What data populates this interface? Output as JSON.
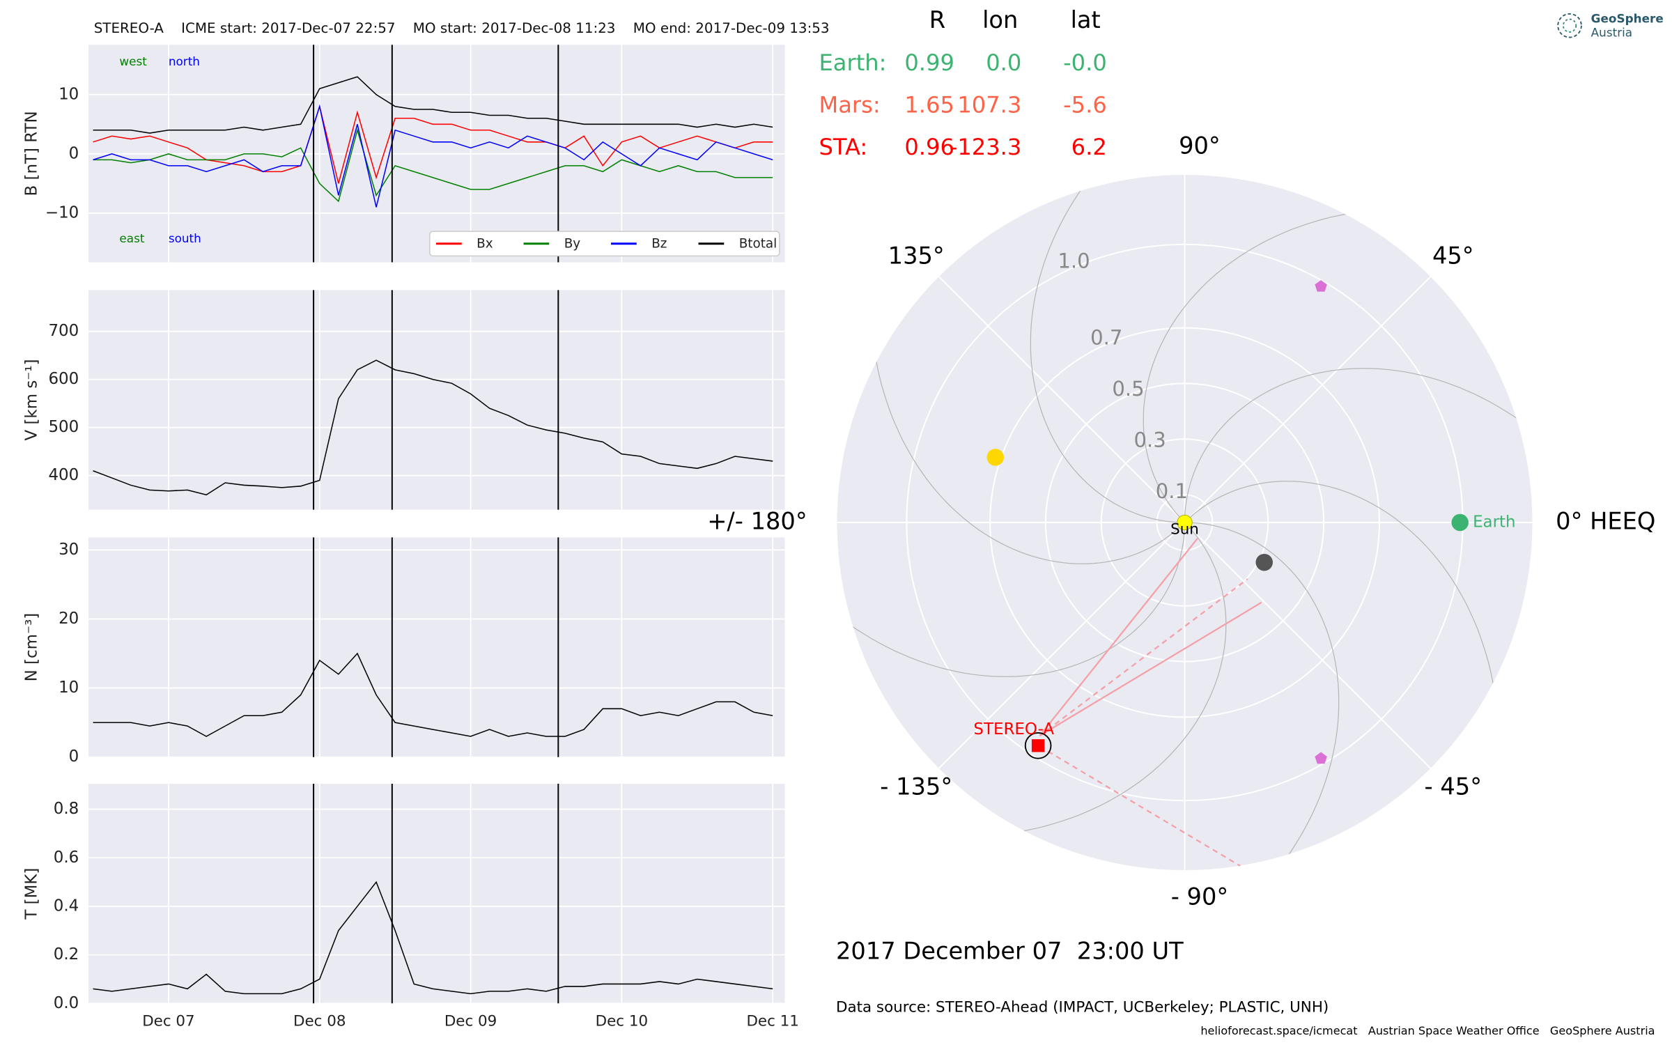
{
  "chart_data": [
    {
      "type": "line",
      "title": "STEREO-A    ICME start: 2017-Dec-07 22:57    MO start: 2017-Dec-08 11:23    MO end: 2017-Dec-09 13:53",
      "y_label": "B [nT] RTN",
      "annotations": [
        {
          "text": "west",
          "color": "#008000"
        },
        {
          "text": "north",
          "color": "#0000ff"
        },
        {
          "text": "east",
          "color": "#008000"
        },
        {
          "text": "south",
          "color": "#0000ff"
        }
      ],
      "x": [
        6.5,
        6.625,
        6.75,
        6.875,
        7.0,
        7.125,
        7.25,
        7.375,
        7.5,
        7.625,
        7.75,
        7.875,
        8.0,
        8.125,
        8.25,
        8.375,
        8.5,
        8.625,
        8.75,
        8.875,
        9.0,
        9.125,
        9.25,
        9.375,
        9.5,
        9.625,
        9.75,
        9.875,
        10.0,
        10.125,
        10.25,
        10.375,
        10.5,
        10.625,
        10.75,
        10.875,
        11.0
      ],
      "series": [
        {
          "name": "Bx",
          "color": "#ff0000",
          "values": [
            2,
            3,
            2.5,
            3,
            2,
            1,
            -1,
            -1.5,
            -2,
            -3,
            -3,
            -2,
            8,
            -5,
            7,
            -4,
            6,
            6,
            5,
            5,
            4,
            4,
            3,
            2,
            2,
            1,
            3,
            -2,
            2,
            3,
            1,
            2,
            3,
            2,
            1,
            2,
            2
          ]
        },
        {
          "name": "By",
          "color": "#008000",
          "values": [
            -1,
            -1,
            -1.5,
            -1,
            0,
            -1,
            -1,
            -1,
            0,
            0,
            -0.5,
            1,
            -5,
            -8,
            4,
            -7,
            -2,
            -3,
            -4,
            -5,
            -6,
            -6,
            -5,
            -4,
            -3,
            -2,
            -2,
            -3,
            -1,
            -2,
            -3,
            -2,
            -3,
            -3,
            -4,
            -4,
            -4
          ]
        },
        {
          "name": "Bz",
          "color": "#0000ff",
          "values": [
            -1,
            0,
            -1,
            -1,
            -2,
            -2,
            -3,
            -2,
            -1,
            -3,
            -2,
            -2,
            8,
            -7,
            5,
            -9,
            4,
            3,
            2,
            2,
            1,
            2,
            1,
            3,
            2,
            1,
            -1,
            2,
            0,
            -2,
            1,
            0,
            -1,
            2,
            1,
            0,
            -1
          ]
        },
        {
          "name": "Btotal",
          "color": "#000000",
          "values": [
            4,
            4,
            4,
            3.5,
            4,
            4,
            4,
            4,
            4.5,
            4,
            4.5,
            5,
            11,
            12,
            13,
            10,
            8,
            7.5,
            7.5,
            7,
            7,
            6.5,
            6.5,
            6,
            6,
            5.5,
            5,
            5,
            5,
            5,
            5,
            5,
            4.5,
            5,
            4.5,
            5,
            4.5
          ]
        }
      ],
      "xlim": [
        6.47,
        11.08
      ],
      "xticks": [
        7,
        8,
        9,
        10,
        11
      ],
      "ylim": [
        -18.3,
        18.4
      ],
      "yticks": [
        {
          "value": -10,
          "label": "−10"
        },
        0,
        10
      ],
      "vlines": [
        7.96,
        8.48,
        9.58
      ],
      "grid": true,
      "legend": "lower right"
    },
    {
      "type": "line",
      "y_label": "V [km s⁻¹]",
      "x": [
        6.5,
        6.625,
        6.75,
        6.875,
        7.0,
        7.125,
        7.25,
        7.375,
        7.5,
        7.625,
        7.75,
        7.875,
        8.0,
        8.125,
        8.25,
        8.375,
        8.5,
        8.625,
        8.75,
        8.875,
        9.0,
        9.125,
        9.25,
        9.375,
        9.5,
        9.625,
        9.75,
        9.875,
        10.0,
        10.125,
        10.25,
        10.375,
        10.5,
        10.625,
        10.75,
        10.875,
        11.0
      ],
      "series": [
        {
          "color": "#000000",
          "values": [
            410,
            395,
            380,
            370,
            368,
            370,
            360,
            385,
            380,
            378,
            375,
            378,
            390,
            560,
            620,
            640,
            620,
            612,
            600,
            592,
            570,
            540,
            525,
            505,
            495,
            488,
            478,
            470,
            445,
            440,
            425,
            420,
            415,
            425,
            440,
            435,
            430
          ]
        }
      ],
      "xlim": [
        6.47,
        11.08
      ],
      "xticks": [
        7,
        8,
        9,
        10,
        11
      ],
      "ylim": [
        329,
        786
      ],
      "yticks": [
        400,
        500,
        600,
        700
      ],
      "vlines": [
        7.96,
        8.48,
        9.58
      ],
      "grid": true
    },
    {
      "type": "line",
      "y_label": "N [cm⁻³]",
      "x": [
        6.5,
        6.625,
        6.75,
        6.875,
        7.0,
        7.125,
        7.25,
        7.375,
        7.5,
        7.625,
        7.75,
        7.875,
        8.0,
        8.125,
        8.25,
        8.375,
        8.5,
        8.625,
        8.75,
        8.875,
        9.0,
        9.125,
        9.25,
        9.375,
        9.5,
        9.625,
        9.75,
        9.875,
        10.0,
        10.125,
        10.25,
        10.375,
        10.5,
        10.625,
        10.75,
        10.875,
        11.0
      ],
      "series": [
        {
          "color": "#000000",
          "values": [
            5,
            5,
            5,
            4.5,
            5,
            4.5,
            3,
            4.5,
            6,
            6,
            6.5,
            9,
            14,
            12,
            15,
            9,
            5,
            4.5,
            4,
            3.5,
            3,
            4,
            3,
            3.5,
            3,
            3,
            4,
            7,
            7,
            6,
            6.5,
            6,
            7,
            8,
            8,
            6.5,
            6
          ]
        }
      ],
      "xlim": [
        6.47,
        11.08
      ],
      "xticks": [
        7,
        8,
        9,
        10,
        11
      ],
      "ylim": [
        0,
        31.8
      ],
      "yticks": [
        0,
        10,
        20,
        30
      ],
      "vlines": [
        7.96,
        8.48,
        9.58
      ],
      "grid": true
    },
    {
      "type": "line",
      "y_label": "T [MK]",
      "x": [
        6.5,
        6.625,
        6.75,
        6.875,
        7.0,
        7.125,
        7.25,
        7.375,
        7.5,
        7.625,
        7.75,
        7.875,
        8.0,
        8.125,
        8.25,
        8.375,
        8.5,
        8.625,
        8.75,
        8.875,
        9.0,
        9.125,
        9.25,
        9.375,
        9.5,
        9.625,
        9.75,
        9.875,
        10.0,
        10.125,
        10.25,
        10.375,
        10.5,
        10.625,
        10.75,
        10.875,
        11.0
      ],
      "series": [
        {
          "color": "#000000",
          "values": [
            0.06,
            0.05,
            0.06,
            0.07,
            0.08,
            0.06,
            0.12,
            0.05,
            0.04,
            0.04,
            0.04,
            0.06,
            0.1,
            0.3,
            0.4,
            0.5,
            0.3,
            0.08,
            0.06,
            0.05,
            0.04,
            0.05,
            0.05,
            0.06,
            0.05,
            0.07,
            0.07,
            0.08,
            0.08,
            0.08,
            0.09,
            0.08,
            0.1,
            0.09,
            0.08,
            0.07,
            0.06
          ]
        }
      ],
      "xlim": [
        6.47,
        11.08
      ],
      "xticks": [
        {
          "value": 7,
          "label": "Dec 07"
        },
        {
          "value": 8,
          "label": "Dec 08"
        },
        {
          "value": 9,
          "label": "Dec 09"
        },
        {
          "value": 10,
          "label": "Dec 10"
        },
        {
          "value": 11,
          "label": "Dec 11"
        }
      ],
      "ylim": [
        0,
        0.905
      ],
      "yticks": [
        {
          "value": 0,
          "label": "0.0"
        },
        0.2,
        0.4,
        0.6,
        0.8
      ],
      "vlines": [
        7.96,
        8.48,
        9.58
      ],
      "grid": true
    },
    {
      "type": "polar",
      "title": "2017 December 07  23:00 UT",
      "rlim": [
        0,
        1.25
      ],
      "rticks": [
        0.1,
        0.3,
        0.5,
        0.7,
        {
          "value": 1,
          "label": "1.0"
        }
      ],
      "thetaticks": [
        {
          "value": 0,
          "label": "0° HEEQ"
        },
        {
          "value": 45,
          "label": "45°"
        },
        {
          "value": 90,
          "label": "90°"
        },
        {
          "value": 135,
          "label": "135°"
        },
        {
          "value": 180,
          "label": "+/- 180°"
        },
        {
          "value": -135,
          "label": "- 135°"
        },
        {
          "value": -90,
          "label": "- 90°"
        },
        {
          "value": -45,
          "label": "- 45°"
        }
      ],
      "markers": [
        {
          "name": "Sun",
          "r": 0,
          "lon": 0,
          "color": "#ffff00",
          "shape": "circle"
        },
        {
          "name": "Earth",
          "r": 0.99,
          "lon": 0,
          "color": "#3cb371",
          "shape": "circle"
        },
        {
          "name": null,
          "r": 0.72,
          "lon": 161,
          "color": "#ffd700",
          "shape": "circle"
        },
        {
          "name": null,
          "r": 0.32,
          "lon": -26.6,
          "color": "#555555",
          "shape": "circle"
        },
        {
          "name": null,
          "r": 0.98,
          "lon": 60,
          "color": "#da70d6",
          "shape": "pentagon"
        },
        {
          "name": null,
          "r": 0.98,
          "lon": -60,
          "color": "#da70d6",
          "shape": "pentagon"
        },
        {
          "name": "STEREO-A",
          "r": 0.96,
          "lon": -123.3,
          "color": "#ff0000",
          "shape": "square"
        }
      ],
      "grid": true
    }
  ],
  "positions": {
    "columns": [
      "R",
      "lon",
      "lat"
    ],
    "rows": [
      {
        "name": "Earth:",
        "color": "#3cb371",
        "cells": [
          "0.99",
          "0.0",
          "-0.0"
        ]
      },
      {
        "name": "Mars:",
        "color": "#ff6347",
        "cells": [
          "1.65",
          "107.3",
          "-5.6"
        ]
      },
      {
        "name": "STA:",
        "color": "#ff0000",
        "cells": [
          "0.96",
          "-123.3",
          "6.2"
        ]
      }
    ]
  },
  "logo": [
    "GeoSphere",
    "Austria"
  ],
  "footer": {
    "source": "Data source: STEREO-Ahead (IMPACT, UCBerkeley; PLASTIC, UNH)",
    "credits": [
      "helioforecast.space/icmecat",
      "Austrian Space Weather Office",
      "GeoSphere Austria"
    ]
  }
}
